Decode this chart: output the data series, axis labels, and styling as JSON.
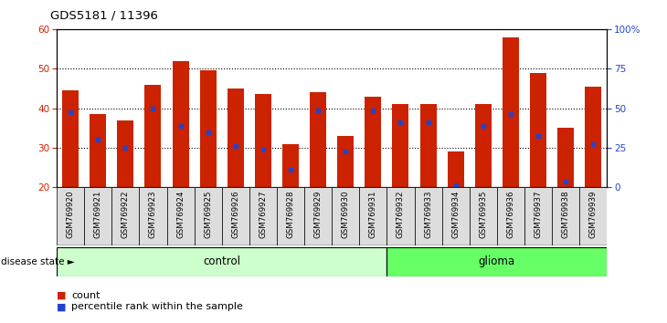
{
  "title": "GDS5181 / 11396",
  "samples": [
    "GSM769920",
    "GSM769921",
    "GSM769922",
    "GSM769923",
    "GSM769924",
    "GSM769925",
    "GSM769926",
    "GSM769927",
    "GSM769928",
    "GSM769929",
    "GSM769930",
    "GSM769931",
    "GSM769932",
    "GSM769933",
    "GSM769934",
    "GSM769935",
    "GSM769936",
    "GSM769937",
    "GSM769938",
    "GSM769939"
  ],
  "bar_heights": [
    44.5,
    38.5,
    37.0,
    46.0,
    52.0,
    49.5,
    45.0,
    43.5,
    31.0,
    44.0,
    33.0,
    43.0,
    41.0,
    41.0,
    29.0,
    41.0,
    58.0,
    49.0,
    35.0,
    45.5
  ],
  "blue_dots": [
    39.0,
    32.0,
    30.0,
    40.0,
    35.5,
    34.0,
    30.5,
    29.5,
    24.5,
    39.5,
    29.0,
    39.5,
    36.5,
    36.5,
    20.5,
    35.5,
    38.5,
    33.0,
    21.5,
    31.0
  ],
  "bar_color": "#cc2200",
  "dot_color": "#2244cc",
  "bar_width": 0.6,
  "ylim_left": [
    20,
    60
  ],
  "ylim_right": [
    0,
    100
  ],
  "yticks_left": [
    20,
    30,
    40,
    50,
    60
  ],
  "yticks_right": [
    0,
    25,
    50,
    75,
    100
  ],
  "ytick_labels_right": [
    "0",
    "25",
    "50",
    "75",
    "100%"
  ],
  "grid_ticks": [
    30,
    40,
    50
  ],
  "control_count": 12,
  "glioma_count": 8,
  "disease_state_label": "disease state",
  "control_label": "control",
  "glioma_label": "glioma",
  "legend_count_label": "count",
  "legend_pct_label": "percentile rank within the sample",
  "control_color": "#ccffcc",
  "glioma_color": "#66ff66",
  "bg_color": "#dddddd",
  "plot_bg": "#ffffff"
}
